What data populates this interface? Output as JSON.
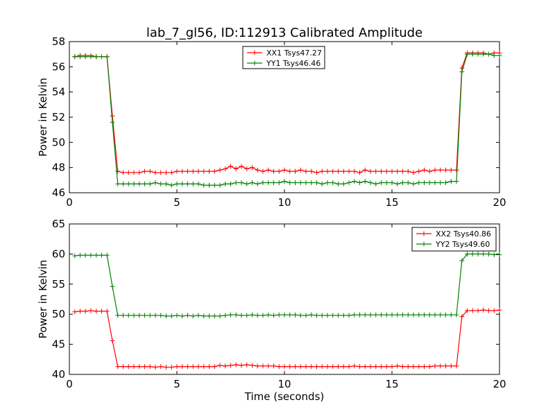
{
  "figure": {
    "title": "lab_7_gl56, ID:112913 Calibrated Amplitude"
  },
  "colors": {
    "xx": "#ff0000",
    "yy": "#008000"
  },
  "chart_data": [
    {
      "type": "line",
      "ylabel": "Power in Kelvin",
      "xlabel": "",
      "xlim": [
        0,
        20
      ],
      "ylim": [
        46,
        58
      ],
      "xticks": [
        0,
        5,
        10,
        15,
        20
      ],
      "yticks": [
        46,
        48,
        50,
        52,
        54,
        56,
        58
      ],
      "grid": false,
      "legend_position": "top-center",
      "x": [
        0.25,
        0.5,
        0.75,
        1.0,
        1.25,
        1.5,
        1.75,
        2.0,
        2.25,
        2.5,
        2.75,
        3.0,
        3.25,
        3.5,
        3.75,
        4.0,
        4.25,
        4.5,
        4.75,
        5.0,
        5.25,
        5.5,
        5.75,
        6.0,
        6.25,
        6.5,
        6.75,
        7.0,
        7.25,
        7.5,
        7.75,
        8.0,
        8.25,
        8.5,
        8.75,
        9.0,
        9.25,
        9.5,
        9.75,
        10.0,
        10.25,
        10.5,
        10.75,
        11.0,
        11.25,
        11.5,
        11.75,
        12.0,
        12.25,
        12.5,
        12.75,
        13.0,
        13.25,
        13.5,
        13.75,
        14.0,
        14.25,
        14.5,
        14.75,
        15.0,
        15.25,
        15.5,
        15.75,
        16.0,
        16.25,
        16.5,
        16.75,
        17.0,
        17.25,
        17.5,
        17.75,
        18.0,
        18.25,
        18.5,
        18.75,
        19.0,
        19.25,
        19.5,
        19.75,
        20.0
      ],
      "series": [
        {
          "name": "XX1 Tsys47.27",
          "color": "#ff0000",
          "values": [
            56.8,
            56.9,
            56.9,
            56.9,
            56.8,
            56.8,
            56.8,
            52.1,
            47.7,
            47.6,
            47.6,
            47.6,
            47.6,
            47.7,
            47.7,
            47.6,
            47.6,
            47.6,
            47.6,
            47.7,
            47.7,
            47.7,
            47.7,
            47.7,
            47.7,
            47.7,
            47.7,
            47.8,
            47.9,
            48.1,
            47.9,
            48.1,
            47.9,
            48.0,
            47.8,
            47.7,
            47.8,
            47.7,
            47.7,
            47.8,
            47.7,
            47.7,
            47.8,
            47.7,
            47.7,
            47.6,
            47.7,
            47.7,
            47.7,
            47.7,
            47.7,
            47.7,
            47.7,
            47.6,
            47.8,
            47.7,
            47.7,
            47.7,
            47.7,
            47.7,
            47.7,
            47.7,
            47.7,
            47.6,
            47.7,
            47.8,
            47.7,
            47.8,
            47.8,
            47.8,
            47.8,
            47.8,
            55.9,
            57.1,
            57.1,
            57.1,
            57.1,
            57.0,
            57.1,
            57.1
          ]
        },
        {
          "name": "YY1 Tsys46.46",
          "color": "#008000",
          "values": [
            56.8,
            56.8,
            56.8,
            56.8,
            56.8,
            56.8,
            56.8,
            51.6,
            46.7,
            46.7,
            46.7,
            46.7,
            46.7,
            46.7,
            46.7,
            46.8,
            46.7,
            46.7,
            46.6,
            46.7,
            46.7,
            46.7,
            46.7,
            46.7,
            46.6,
            46.6,
            46.6,
            46.6,
            46.7,
            46.7,
            46.8,
            46.8,
            46.7,
            46.8,
            46.7,
            46.8,
            46.8,
            46.8,
            46.8,
            46.9,
            46.8,
            46.8,
            46.8,
            46.8,
            46.8,
            46.8,
            46.7,
            46.8,
            46.8,
            46.7,
            46.7,
            46.8,
            46.9,
            46.8,
            46.9,
            46.8,
            46.7,
            46.8,
            46.8,
            46.8,
            46.7,
            46.8,
            46.8,
            46.7,
            46.8,
            46.8,
            46.8,
            46.8,
            46.8,
            46.8,
            46.9,
            46.9,
            55.6,
            57.0,
            57.0,
            57.0,
            57.0,
            57.0,
            56.9,
            56.9
          ]
        }
      ]
    },
    {
      "type": "line",
      "ylabel": "Power in Kelvin",
      "xlabel": "Time (seconds)",
      "xlim": [
        0,
        20
      ],
      "ylim": [
        40,
        65
      ],
      "xticks": [
        0,
        5,
        10,
        15,
        20
      ],
      "yticks": [
        40,
        45,
        50,
        55,
        60,
        65
      ],
      "grid": false,
      "legend_position": "top-right",
      "x": [
        0.25,
        0.5,
        0.75,
        1.0,
        1.25,
        1.5,
        1.75,
        2.0,
        2.25,
        2.5,
        2.75,
        3.0,
        3.25,
        3.5,
        3.75,
        4.0,
        4.25,
        4.5,
        4.75,
        5.0,
        5.25,
        5.5,
        5.75,
        6.0,
        6.25,
        6.5,
        6.75,
        7.0,
        7.25,
        7.5,
        7.75,
        8.0,
        8.25,
        8.5,
        8.75,
        9.0,
        9.25,
        9.5,
        9.75,
        10.0,
        10.25,
        10.5,
        10.75,
        11.0,
        11.25,
        11.5,
        11.75,
        12.0,
        12.25,
        12.5,
        12.75,
        13.0,
        13.25,
        13.5,
        13.75,
        14.0,
        14.25,
        14.5,
        14.75,
        15.0,
        15.25,
        15.5,
        15.75,
        16.0,
        16.25,
        16.5,
        16.75,
        17.0,
        17.25,
        17.5,
        17.75,
        18.0,
        18.25,
        18.5,
        18.75,
        19.0,
        19.25,
        19.5,
        19.75,
        20.0
      ],
      "series": [
        {
          "name": "XX2 Tsys40.86",
          "color": "#ff0000",
          "values": [
            50.4,
            50.5,
            50.5,
            50.6,
            50.5,
            50.5,
            50.5,
            45.6,
            41.3,
            41.3,
            41.3,
            41.3,
            41.3,
            41.3,
            41.3,
            41.2,
            41.3,
            41.2,
            41.2,
            41.3,
            41.3,
            41.3,
            41.3,
            41.3,
            41.3,
            41.3,
            41.3,
            41.5,
            41.4,
            41.5,
            41.6,
            41.5,
            41.6,
            41.5,
            41.4,
            41.4,
            41.4,
            41.4,
            41.3,
            41.3,
            41.3,
            41.3,
            41.3,
            41.3,
            41.3,
            41.3,
            41.3,
            41.3,
            41.3,
            41.3,
            41.3,
            41.3,
            41.4,
            41.3,
            41.3,
            41.3,
            41.3,
            41.3,
            41.3,
            41.3,
            41.4,
            41.3,
            41.3,
            41.3,
            41.3,
            41.3,
            41.3,
            41.4,
            41.4,
            41.4,
            41.4,
            41.4,
            49.6,
            50.6,
            50.6,
            50.6,
            50.7,
            50.6,
            50.6,
            50.7
          ]
        },
        {
          "name": "YY2 Tsys49.60",
          "color": "#008000",
          "values": [
            59.7,
            59.8,
            59.8,
            59.8,
            59.8,
            59.8,
            59.8,
            54.6,
            49.8,
            49.8,
            49.8,
            49.8,
            49.8,
            49.8,
            49.8,
            49.8,
            49.8,
            49.7,
            49.7,
            49.8,
            49.7,
            49.8,
            49.7,
            49.8,
            49.7,
            49.7,
            49.7,
            49.7,
            49.8,
            49.9,
            49.9,
            49.8,
            49.8,
            49.9,
            49.8,
            49.8,
            49.9,
            49.8,
            49.9,
            49.9,
            49.9,
            49.9,
            49.8,
            49.8,
            49.9,
            49.8,
            49.8,
            49.8,
            49.8,
            49.8,
            49.8,
            49.8,
            49.9,
            49.9,
            49.9,
            49.9,
            49.9,
            49.9,
            49.9,
            49.9,
            49.9,
            49.9,
            49.9,
            49.9,
            49.9,
            49.9,
            49.9,
            49.9,
            49.9,
            49.9,
            49.9,
            49.9,
            58.9,
            60.0,
            60.0,
            60.0,
            60.0,
            60.0,
            59.9,
            59.9
          ]
        }
      ]
    }
  ]
}
